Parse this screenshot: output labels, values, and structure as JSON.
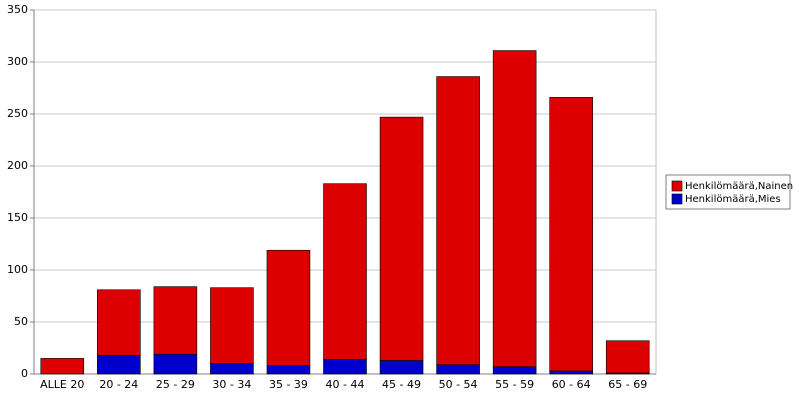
{
  "chart_data": {
    "type": "stacked-bar",
    "categories": [
      "ALLE 20",
      "20 - 24",
      "25 - 29",
      "30 - 34",
      "35 - 39",
      "40 - 44",
      "45 - 49",
      "50 - 54",
      "55 - 59",
      "60 - 64",
      "65 - 69"
    ],
    "series": [
      {
        "name": "Henkilömäärä,Nainen",
        "color": "#dd0000",
        "values": [
          15,
          63,
          65,
          73,
          111,
          169,
          234,
          277,
          304,
          263,
          31
        ]
      },
      {
        "name": "Henkilömäärä,Mies",
        "color": "#0000cc",
        "values": [
          0,
          18,
          19,
          10,
          8,
          14,
          13,
          9,
          7,
          3,
          1
        ]
      }
    ],
    "ylim": [
      0,
      350
    ],
    "yticks": [
      0,
      50,
      100,
      150,
      200,
      250,
      300,
      350
    ],
    "grid": true,
    "legend": "right"
  }
}
